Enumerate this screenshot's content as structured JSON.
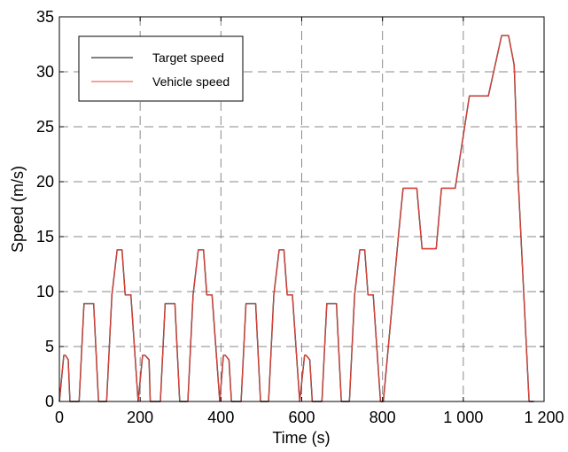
{
  "chart_data": {
    "type": "line",
    "title": "",
    "xlabel": "Time (s)",
    "ylabel": "Speed (m/s)",
    "xlim": [
      0,
      1200
    ],
    "ylim": [
      0,
      35
    ],
    "xticks": [
      0,
      200,
      400,
      600,
      800,
      1000,
      1200
    ],
    "xtick_labels": [
      "0",
      "200",
      "400",
      "600",
      "800",
      "1 000",
      "1 200"
    ],
    "yticks": [
      0,
      5,
      10,
      15,
      20,
      25,
      30,
      35
    ],
    "ytick_labels": [
      "0",
      "5",
      "10",
      "15",
      "20",
      "25",
      "30",
      "35"
    ],
    "grid": true,
    "grid_style": "dashed",
    "legend_position": "top-left",
    "series": [
      {
        "name": "Target speed",
        "color": "#000000",
        "x": [
          0,
          11,
          15,
          22,
          26,
          49,
          61,
          85,
          97,
          117,
          130,
          143,
          155,
          163,
          177,
          195,
          206,
          212,
          222,
          225,
          250,
          262,
          286,
          298,
          318,
          331,
          344,
          357,
          365,
          378,
          397,
          406,
          411,
          420,
          426,
          450,
          462,
          486,
          498,
          518,
          531,
          544,
          556,
          564,
          577,
          595,
          607,
          611,
          620,
          626,
          650,
          662,
          686,
          698,
          718,
          731,
          744,
          756,
          764,
          777,
          795,
          802,
          840,
          851,
          885,
          898,
          933,
          946,
          958,
          980,
          1015,
          1046,
          1062,
          1095,
          1112,
          1126,
          1135,
          1148,
          1163,
          1175
        ],
        "values": [
          0,
          4.2,
          4.2,
          3.8,
          0,
          0,
          8.9,
          8.9,
          0,
          0,
          9.7,
          13.8,
          13.8,
          9.7,
          9.7,
          0,
          4.2,
          4.2,
          3.8,
          0,
          0,
          8.9,
          8.9,
          0,
          0,
          9.7,
          13.8,
          13.8,
          9.7,
          9.7,
          0,
          4.2,
          4.2,
          3.8,
          0,
          0,
          8.9,
          8.9,
          0,
          0,
          9.7,
          13.8,
          13.8,
          9.7,
          9.7,
          0,
          4.2,
          4.2,
          3.8,
          0,
          0,
          8.9,
          8.9,
          0,
          0,
          9.7,
          13.8,
          13.8,
          9.7,
          9.7,
          0,
          0,
          15.3,
          19.4,
          19.4,
          13.9,
          13.9,
          19.4,
          19.4,
          19.4,
          27.8,
          27.8,
          27.8,
          33.3,
          33.3,
          30.6,
          20.8,
          11.1,
          0,
          0
        ]
      },
      {
        "name": "Vehicle speed",
        "color": "#e8443a",
        "x": [
          0,
          11,
          15,
          22,
          26,
          49,
          61,
          85,
          97,
          117,
          130,
          143,
          155,
          163,
          177,
          195,
          206,
          212,
          222,
          225,
          250,
          262,
          286,
          298,
          318,
          331,
          344,
          357,
          365,
          378,
          397,
          406,
          411,
          420,
          426,
          450,
          462,
          486,
          498,
          518,
          531,
          544,
          556,
          564,
          577,
          595,
          607,
          611,
          620,
          626,
          650,
          662,
          686,
          698,
          718,
          731,
          744,
          756,
          764,
          777,
          795,
          802,
          840,
          851,
          885,
          898,
          933,
          946,
          958,
          980,
          1015,
          1046,
          1062,
          1095,
          1112,
          1126,
          1135,
          1148,
          1163,
          1175
        ],
        "values": [
          0,
          4.2,
          4.2,
          3.8,
          0,
          0,
          8.9,
          8.9,
          0,
          0,
          9.7,
          13.8,
          13.8,
          9.7,
          9.7,
          0,
          4.2,
          4.2,
          3.8,
          0,
          0,
          8.9,
          8.9,
          0,
          0,
          9.7,
          13.8,
          13.8,
          9.7,
          9.7,
          0,
          4.2,
          4.2,
          3.8,
          0,
          0,
          8.9,
          8.9,
          0,
          0,
          9.7,
          13.8,
          13.8,
          9.7,
          9.7,
          0,
          4.2,
          4.2,
          3.8,
          0,
          0,
          8.9,
          8.9,
          0,
          0,
          9.7,
          13.8,
          13.8,
          9.7,
          9.7,
          0,
          0,
          15.3,
          19.4,
          19.4,
          13.9,
          13.9,
          19.4,
          19.4,
          19.4,
          27.8,
          27.8,
          27.8,
          33.3,
          33.3,
          30.6,
          20.8,
          11.1,
          0,
          0
        ]
      }
    ]
  }
}
